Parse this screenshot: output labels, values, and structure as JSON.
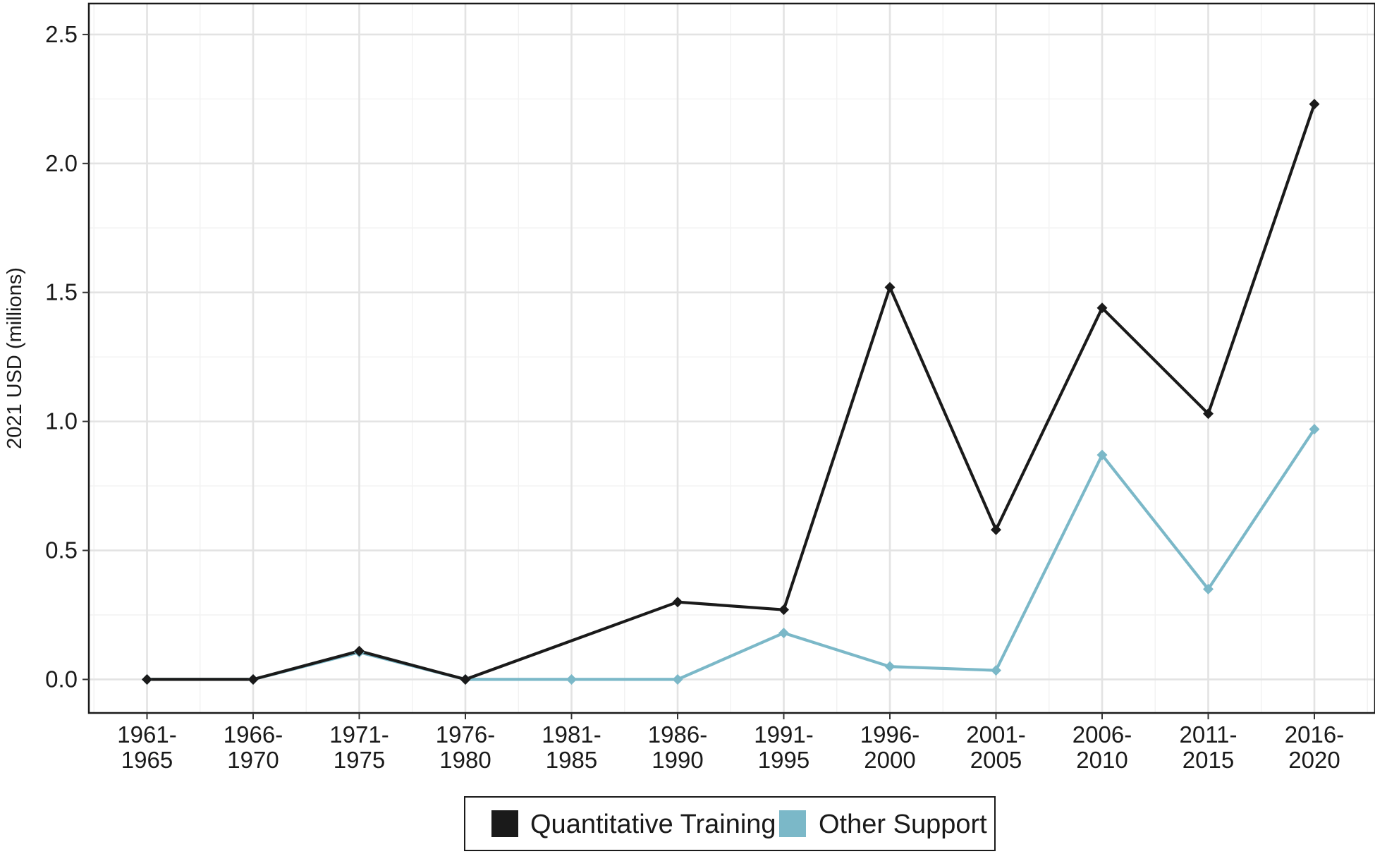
{
  "chart_data": {
    "type": "line",
    "title": "",
    "xlabel": "",
    "ylabel": "2021 USD (millions)",
    "categories": [
      [
        "1961-",
        "1965"
      ],
      [
        "1966-",
        "1970"
      ],
      [
        "1971-",
        "1975"
      ],
      [
        "1976-",
        "1980"
      ],
      [
        "1981-",
        "1985"
      ],
      [
        "1986-",
        "1990"
      ],
      [
        "1991-",
        "1995"
      ],
      [
        "1996-",
        "2000"
      ],
      [
        "2001-",
        "2005"
      ],
      [
        "2006-",
        "2010"
      ],
      [
        "2011-",
        "2015"
      ],
      [
        "2016-",
        "2020"
      ]
    ],
    "ylim": [
      -0.13,
      2.62
    ],
    "yticks": [
      "0.0",
      "0.5",
      "1.0",
      "1.5",
      "2.0",
      "2.5"
    ],
    "grid": true,
    "legend_position": "bottom",
    "series": [
      {
        "name": "Quantitative Training",
        "color": "#1a1a1a",
        "marker": "diamond",
        "points": [
          [
            0,
            0.0
          ],
          [
            1,
            0.0
          ],
          [
            2,
            0.11
          ],
          [
            3,
            0.0
          ],
          [
            5,
            0.3
          ],
          [
            6,
            0.27
          ],
          [
            7,
            1.52
          ],
          [
            8,
            0.58
          ],
          [
            9,
            1.44
          ],
          [
            10,
            1.03
          ],
          [
            11,
            2.23
          ]
        ]
      },
      {
        "name": "Other Support",
        "color": "#7bb8c8",
        "marker": "diamond",
        "points": [
          [
            0,
            0.0
          ],
          [
            1,
            0.0
          ],
          [
            2,
            0.105
          ],
          [
            3,
            0.0
          ],
          [
            4,
            0.0
          ],
          [
            5,
            0.0
          ],
          [
            6,
            0.18
          ],
          [
            7,
            0.05
          ],
          [
            8,
            0.035
          ],
          [
            9,
            0.87
          ],
          [
            10,
            0.35
          ],
          [
            11,
            0.97
          ]
        ]
      }
    ]
  }
}
